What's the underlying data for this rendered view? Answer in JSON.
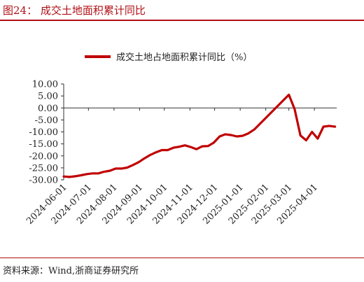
{
  "figure": {
    "title": "图24：  成交土地面积累计同比",
    "source": "资料来源：Wind,浙商证券研究所"
  },
  "colors": {
    "accent": "#c00000",
    "text": "#222222"
  },
  "chart_data": {
    "type": "line",
    "legend_position": "top-center",
    "grid": false,
    "ylim": [
      -30,
      10
    ],
    "y_ticks": [
      "10.00",
      "5.00",
      "0.00",
      "-5.00",
      "-10.00",
      "-15.00",
      "-20.00",
      "-25.00",
      "-30.00"
    ],
    "x_ticks": [
      "2024-06-01",
      "2024-07-01",
      "2024-08-01",
      "2024-09-01",
      "2024-10-01",
      "2024-11-01",
      "2024-12-01",
      "2025-01-01",
      "2025-02-01",
      "2025-03-01",
      "2025-04-01"
    ],
    "series": [
      {
        "name": "成交土地占地面积累计同比（%）",
        "color": "#c00000",
        "points": [
          [
            "2024-06-01",
            -28.6
          ],
          [
            "2024-06-08",
            -28.8
          ],
          [
            "2024-06-15",
            -28.5
          ],
          [
            "2024-06-22",
            -28.1
          ],
          [
            "2024-06-29",
            -27.6
          ],
          [
            "2024-07-06",
            -27.3
          ],
          [
            "2024-07-13",
            -27.3
          ],
          [
            "2024-07-20",
            -26.6
          ],
          [
            "2024-07-27",
            -26.2
          ],
          [
            "2024-08-03",
            -25.3
          ],
          [
            "2024-08-10",
            -25.3
          ],
          [
            "2024-08-17",
            -24.9
          ],
          [
            "2024-08-24",
            -23.8
          ],
          [
            "2024-08-31",
            -22.6
          ],
          [
            "2024-09-07",
            -21.0
          ],
          [
            "2024-09-14",
            -19.6
          ],
          [
            "2024-09-21",
            -18.5
          ],
          [
            "2024-09-28",
            -17.6
          ],
          [
            "2024-10-05",
            -17.6
          ],
          [
            "2024-10-12",
            -16.6
          ],
          [
            "2024-10-19",
            -16.2
          ],
          [
            "2024-10-26",
            -15.6
          ],
          [
            "2024-11-02",
            -16.3
          ],
          [
            "2024-11-09",
            -17.2
          ],
          [
            "2024-11-16",
            -16.0
          ],
          [
            "2024-11-23",
            -15.9
          ],
          [
            "2024-11-30",
            -14.5
          ],
          [
            "2024-12-07",
            -11.9
          ],
          [
            "2024-12-14",
            -11.0
          ],
          [
            "2024-12-21",
            -11.3
          ],
          [
            "2024-12-28",
            -11.9
          ],
          [
            "2025-01-04",
            -11.6
          ],
          [
            "2025-01-11",
            -10.6
          ],
          [
            "2025-01-18",
            -9.0
          ],
          [
            "2025-03-01",
            5.5
          ],
          [
            "2025-03-08",
            -0.5
          ],
          [
            "2025-03-15",
            -11.5
          ],
          [
            "2025-03-22",
            -13.5
          ],
          [
            "2025-03-29",
            -10.0
          ],
          [
            "2025-04-05",
            -12.8
          ],
          [
            "2025-04-12",
            -7.8
          ],
          [
            "2025-04-19",
            -7.5
          ],
          [
            "2025-04-26",
            -7.8
          ]
        ]
      }
    ]
  }
}
